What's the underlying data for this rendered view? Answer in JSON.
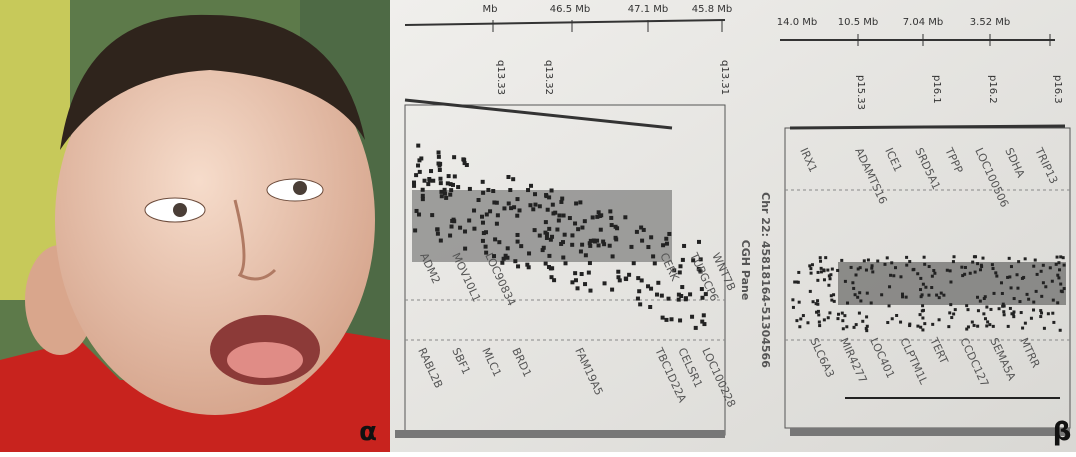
{
  "panel_a_label": "α",
  "panel_b_label": "β",
  "left_plot": {
    "scale_labels": [
      "Mb",
      "46.5 Mb",
      "47.1 Mb",
      "45.8 Mb"
    ],
    "bands": [
      "q13.33",
      "q13.32",
      "q13.31"
    ],
    "upper_genes": [
      "ADM2",
      "MOV10L1",
      "LOC90834",
      "CERK",
      "TUBGCP6",
      "WNT7B"
    ],
    "lower_genes": [
      "RABL2B",
      "SBF1",
      "MLC1",
      "BRD1",
      "FAM19A5",
      "TBC1D22A",
      "CELSR1",
      "LOC100228"
    ],
    "side_title": "CGH Pane",
    "region": "Chr 22: 45818164-51304566"
  },
  "right_plot": {
    "scale_labels": [
      "14.0 Mb",
      "10.5 Mb",
      "7.04 Mb",
      "3.52 Mb"
    ],
    "bands": [
      "p15.33",
      "p16.1",
      "p16.2",
      "p16.3"
    ],
    "upper_genes": [
      "IRX1",
      "ADAMTS16",
      "ICE1",
      "SRD5A1",
      "TPPP",
      "LOC100506",
      "SDHA",
      "TRIP13"
    ],
    "lower_genes": [
      "SLC6A3",
      "MIR4277",
      "LOC401",
      "CLPTM1L",
      "TERT",
      "CCDC127",
      "SEMA5A",
      "MTRR"
    ]
  }
}
